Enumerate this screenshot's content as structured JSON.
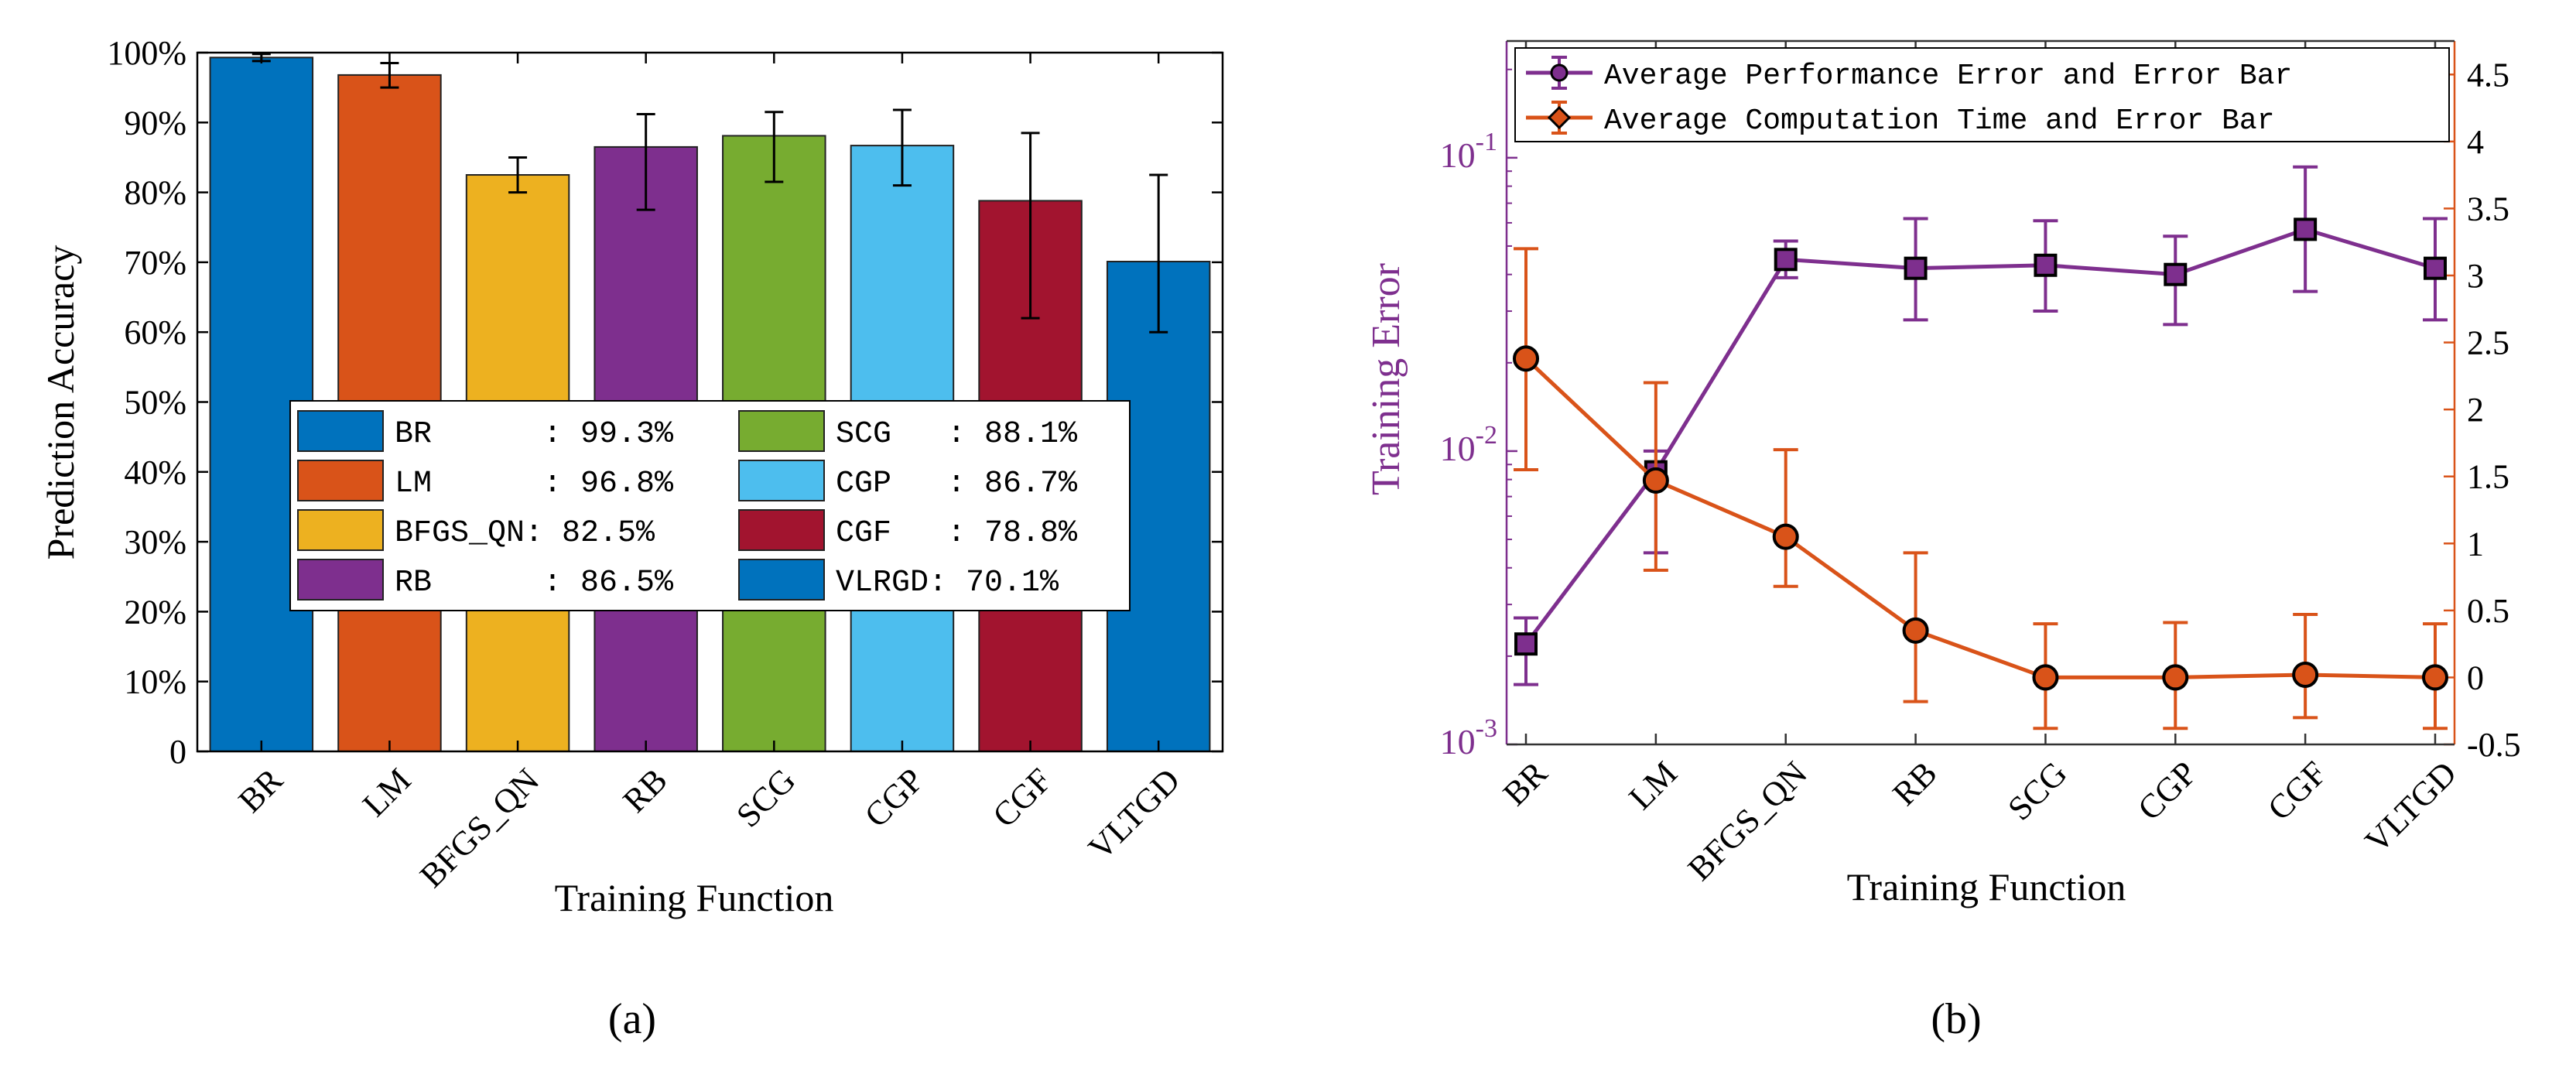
{
  "chart_data": [
    {
      "panel_label": "(a)",
      "type": "bar",
      "xlabel": "Training Function",
      "ylabel": "Prediction Accuracy",
      "categories": [
        "BR",
        "LM",
        "BFGS_QN",
        "RB",
        "SCG",
        "CGP",
        "CGF",
        "VLTGD"
      ],
      "values": [
        99.3,
        96.8,
        82.5,
        86.5,
        88.1,
        86.7,
        78.8,
        70.1
      ],
      "error_low": [
        98.8,
        95.0,
        80.0,
        77.5,
        81.5,
        81.0,
        62.0,
        60.0
      ],
      "error_high": [
        99.8,
        98.5,
        85.0,
        91.2,
        91.5,
        91.8,
        88.5,
        82.5
      ],
      "colors": [
        "#0072BD",
        "#D95319",
        "#EDB120",
        "#7E2F8E",
        "#77AC30",
        "#4DBEEE",
        "#A2142F",
        "#0072BD"
      ],
      "ylim": [
        0,
        100
      ],
      "yticks": [
        0,
        10,
        20,
        30,
        40,
        50,
        60,
        70,
        80,
        90,
        100
      ],
      "ytick_labels": [
        "0",
        "10%",
        "20%",
        "30%",
        "40%",
        "50%",
        "60%",
        "70%",
        "80%",
        "90%",
        "100%"
      ],
      "legend_placement": "lower-center",
      "legend": [
        {
          "label": "BR      : 99.3%",
          "color": "#0072BD"
        },
        {
          "label": "SCG   : 88.1%",
          "color": "#77AC30"
        },
        {
          "label": "LM      : 96.8%",
          "color": "#D95319"
        },
        {
          "label": "CGP   : 86.7%",
          "color": "#4DBEEE"
        },
        {
          "label": "BFGS_QN: 82.5%",
          "color": "#EDB120"
        },
        {
          "label": "CGF   : 78.8%",
          "color": "#A2142F"
        },
        {
          "label": "RB      : 86.5%",
          "color": "#7E2F8E"
        },
        {
          "label": "VLRGD: 70.1%",
          "color": "#0072BD"
        }
      ]
    },
    {
      "panel_label": "(b)",
      "type": "line",
      "xlabel": "Training Function",
      "ylabel": "Training Error",
      "categories": [
        "BR",
        "LM",
        "BFGS_QN",
        "RB",
        "SCG",
        "CGP",
        "CGF",
        "VLTGD"
      ],
      "y_scale": "log",
      "ylim": [
        0.001,
        0.25
      ],
      "yticks": [
        0.001,
        0.01,
        0.1
      ],
      "ytick_labels": [
        "10^-3",
        "10^-2",
        "10^-1"
      ],
      "y2lim": [
        -0.5,
        4.75
      ],
      "y2ticks": [
        -0.5,
        0,
        0.5,
        1,
        1.5,
        2,
        2.5,
        3,
        3.5,
        4,
        4.5
      ],
      "y2tick_labels": [
        "-0.5",
        "0",
        "0.5",
        "1",
        "1.5",
        "2",
        "2.5",
        "3",
        "3.5",
        "4",
        "4.5"
      ],
      "legend_placement": "top",
      "series": [
        {
          "name": "Average Performance Error and Error Bar",
          "axis": "left",
          "color": "#7E2F8E",
          "values": [
            0.0022,
            0.0085,
            0.045,
            0.042,
            0.043,
            0.04,
            0.057,
            0.042
          ],
          "error_low": [
            0.0016,
            0.0045,
            0.039,
            0.028,
            0.03,
            0.027,
            0.035,
            0.028
          ],
          "error_high": [
            0.0027,
            0.01,
            0.052,
            0.062,
            0.061,
            0.054,
            0.093,
            0.062
          ]
        },
        {
          "name": "Average Computation Time and Error Bar",
          "axis": "right",
          "color": "#D95319",
          "values": [
            2.38,
            1.47,
            1.05,
            0.35,
            0.0,
            0.0,
            0.02,
            0.0
          ],
          "error_low": [
            1.55,
            0.8,
            0.68,
            -0.18,
            -0.38,
            -0.38,
            -0.3,
            -0.38
          ],
          "error_high": [
            3.2,
            2.2,
            1.7,
            0.93,
            0.4,
            0.41,
            0.47,
            0.4
          ]
        }
      ]
    }
  ]
}
